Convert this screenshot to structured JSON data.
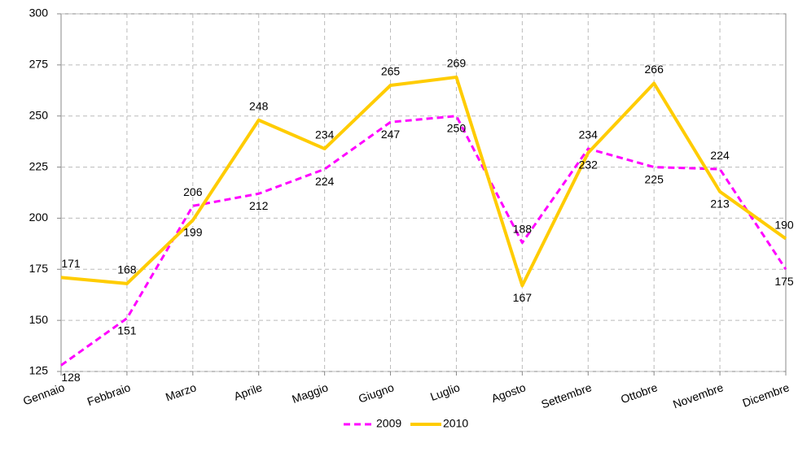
{
  "chart_data": {
    "type": "line",
    "categories": [
      "Gennaio",
      "Febbraio",
      "Marzo",
      "Aprile",
      "Maggio",
      "Giugno",
      "Luglio",
      "Agosto",
      "Settembre",
      "Ottobre",
      "Novembre",
      "Dicembre"
    ],
    "series": [
      {
        "name": "2009",
        "color": "#ff00ff",
        "dashed": true,
        "values": [
          128,
          151,
          206,
          212,
          224,
          247,
          250,
          188,
          234,
          225,
          224,
          175
        ]
      },
      {
        "name": "2010",
        "color": "#ffcc00",
        "dashed": false,
        "values": [
          171,
          168,
          199,
          248,
          234,
          265,
          269,
          167,
          232,
          266,
          213,
          190
        ]
      }
    ],
    "ylim": [
      125,
      300
    ],
    "yticks": [
      125,
      150,
      175,
      200,
      225,
      250,
      275,
      300
    ],
    "grid": true,
    "legend": "bottom"
  }
}
